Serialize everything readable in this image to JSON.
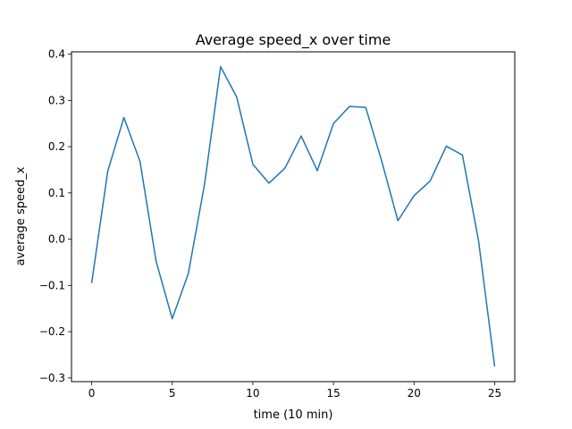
{
  "chart_data": {
    "type": "line",
    "title": "Average speed_x over time",
    "xlabel": "time (10 min)",
    "ylabel": "average speed_x",
    "xlim": [
      -1.25,
      26.25
    ],
    "ylim": [
      -0.308,
      0.405
    ],
    "x_ticks": [
      0,
      5,
      10,
      15,
      20,
      25
    ],
    "y_ticks": [
      -0.3,
      -0.2,
      -0.1,
      0.0,
      0.1,
      0.2,
      0.3,
      0.4
    ],
    "x_tick_labels": [
      "0",
      "5",
      "10",
      "15",
      "20",
      "25"
    ],
    "y_tick_labels": [
      "−0.3",
      "−0.2",
      "−0.1",
      "0.0",
      "0.1",
      "0.2",
      "0.3",
      "0.4"
    ],
    "grid": false,
    "series": [
      {
        "color": "#1f77b4",
        "x": [
          0,
          1,
          2,
          3,
          4,
          5,
          6,
          7,
          8,
          9,
          10,
          11,
          12,
          13,
          14,
          15,
          16,
          17,
          18,
          19,
          20,
          21,
          22,
          23,
          24,
          25
        ],
        "y": [
          -0.095,
          0.147,
          0.263,
          0.168,
          -0.048,
          -0.172,
          -0.074,
          0.118,
          0.373,
          0.307,
          0.162,
          0.121,
          0.154,
          0.223,
          0.148,
          0.25,
          0.287,
          0.285,
          0.168,
          0.04,
          0.094,
          0.126,
          0.201,
          0.182,
          -0.003,
          -0.275
        ]
      }
    ]
  }
}
